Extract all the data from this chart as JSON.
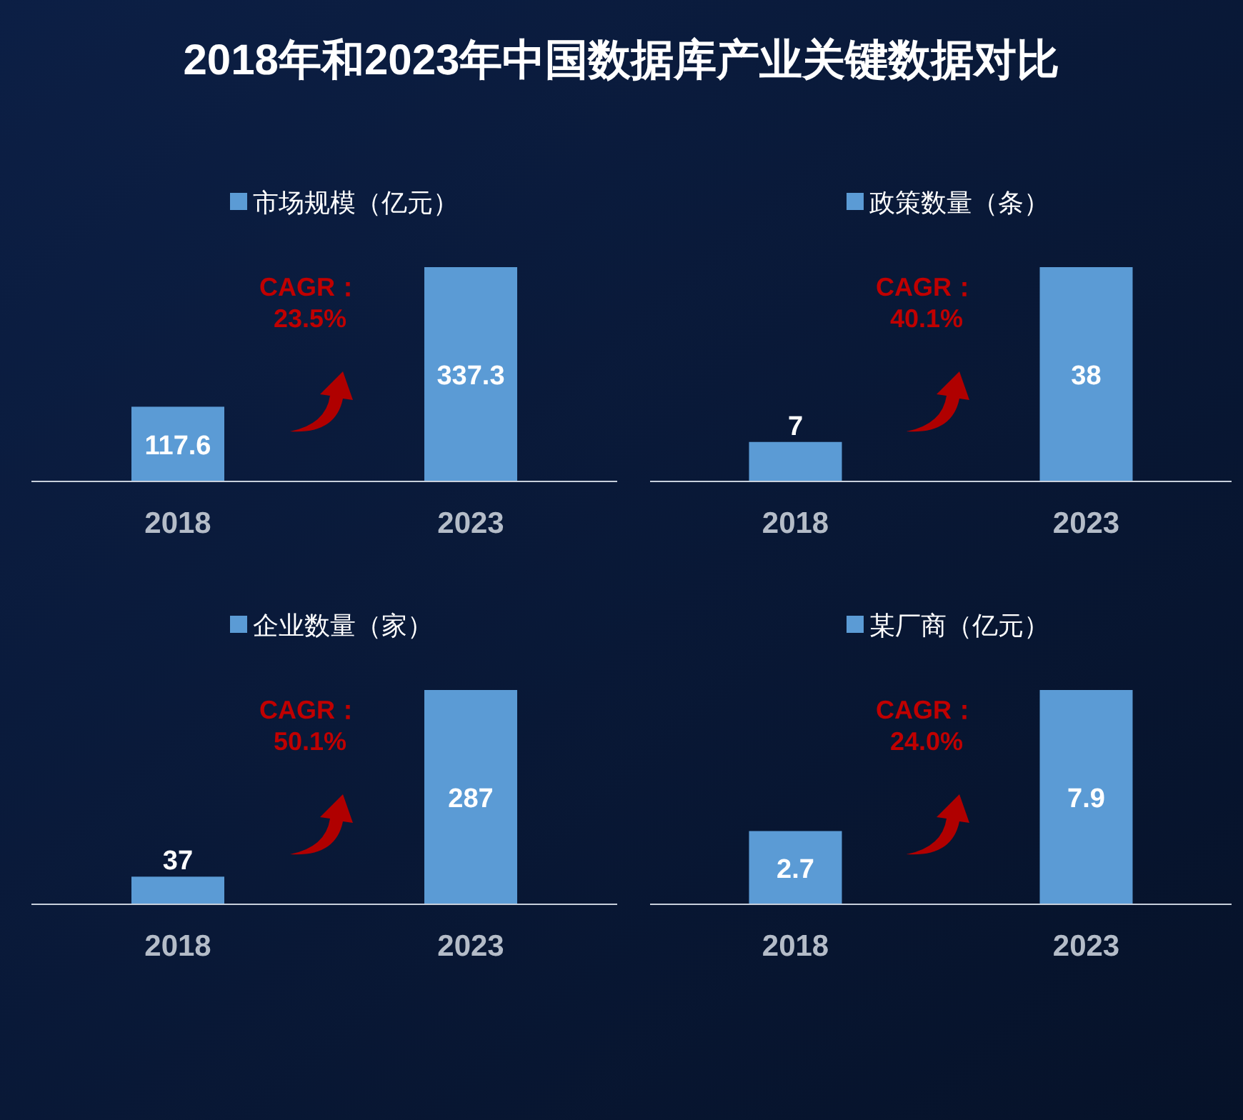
{
  "chart_data": [
    {
      "type": "bar",
      "title": "2018年和2023年中国数据库产业关键数据对比",
      "categories": [
        "2018",
        "2023"
      ],
      "series": [
        {
          "name": "市场规模（亿元）",
          "color": "#5b9bd5",
          "values": [
            117.6,
            337.3
          ]
        }
      ],
      "data_labels": true,
      "legend": "top",
      "annotations": [
        "CAGR：\n23.5%"
      ]
    },
    {
      "type": "bar",
      "categories": [
        "2018",
        "2023"
      ],
      "series": [
        {
          "name": "政策数量（条）",
          "color": "#5b9bd5",
          "values": [
            7,
            38
          ]
        }
      ],
      "data_labels": true,
      "legend": "top",
      "annotations": [
        "CAGR：\n40.1%"
      ]
    },
    {
      "type": "bar",
      "categories": [
        "2018",
        "2023"
      ],
      "series": [
        {
          "name": "企业数量（家）",
          "color": "#5b9bd5",
          "values": [
            37,
            287
          ]
        }
      ],
      "data_labels": true,
      "legend": "top",
      "annotations": [
        "CAGR：\n50.1%"
      ]
    },
    {
      "type": "bar",
      "categories": [
        "2018",
        "2023"
      ],
      "series": [
        {
          "name": "某厂商（亿元）",
          "color": "#5b9bd5",
          "values": [
            2.7,
            7.9
          ]
        }
      ],
      "data_labels": true,
      "legend": "top",
      "annotations": [
        "CAGR：\n24.0%"
      ]
    }
  ]
}
